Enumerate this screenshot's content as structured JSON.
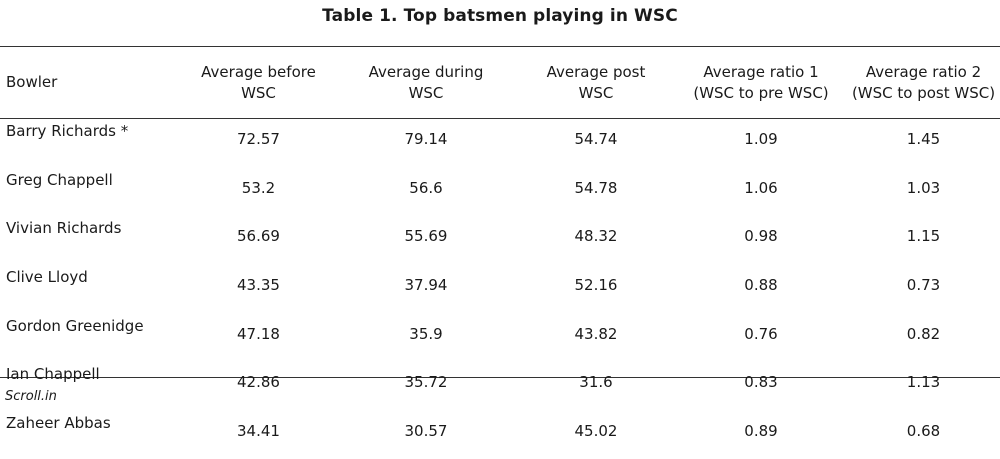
{
  "title": "Table 1. Top batsmen playing in WSC",
  "headers": {
    "h0": "Bowler",
    "h1a": "Average before",
    "h1b": "WSC",
    "h2a": "Average during",
    "h2b": "WSC",
    "h3a": "Average post",
    "h3b": "WSC",
    "h4a": "Average ratio 1",
    "h4b": "(WSC to pre WSC)",
    "h5a": "Average ratio 2",
    "h5b": "(WSC to post WSC)"
  },
  "rows": [
    {
      "name": "Barry Richards *",
      "before": "72.57",
      "during": "79.14",
      "post": "54.74",
      "r1": "1.09",
      "r2": "1.45"
    },
    {
      "name": "Greg Chappell",
      "before": "53.2",
      "during": "56.6",
      "post": "54.78",
      "r1": "1.06",
      "r2": "1.03"
    },
    {
      "name": "Vivian Richards",
      "before": "56.69",
      "during": "55.69",
      "post": "48.32",
      "r1": "0.98",
      "r2": "1.15"
    },
    {
      "name": "Clive Lloyd",
      "before": "43.35",
      "during": "37.94",
      "post": "52.16",
      "r1": "0.88",
      "r2": "0.73"
    },
    {
      "name": "Gordon Greenidge",
      "before": "47.18",
      "during": "35.9",
      "post": "43.82",
      "r1": "0.76",
      "r2": "0.82"
    },
    {
      "name": "Ian Chappell",
      "before": "42.86",
      "during": "35.72",
      "post": "31.6",
      "r1": "0.83",
      "r2": "1.13"
    },
    {
      "name": "Zaheer Abbas",
      "before": "34.41",
      "during": "30.57",
      "post": "45.02",
      "r1": "0.89",
      "r2": "0.68"
    }
  ],
  "source": "Scroll.in"
}
